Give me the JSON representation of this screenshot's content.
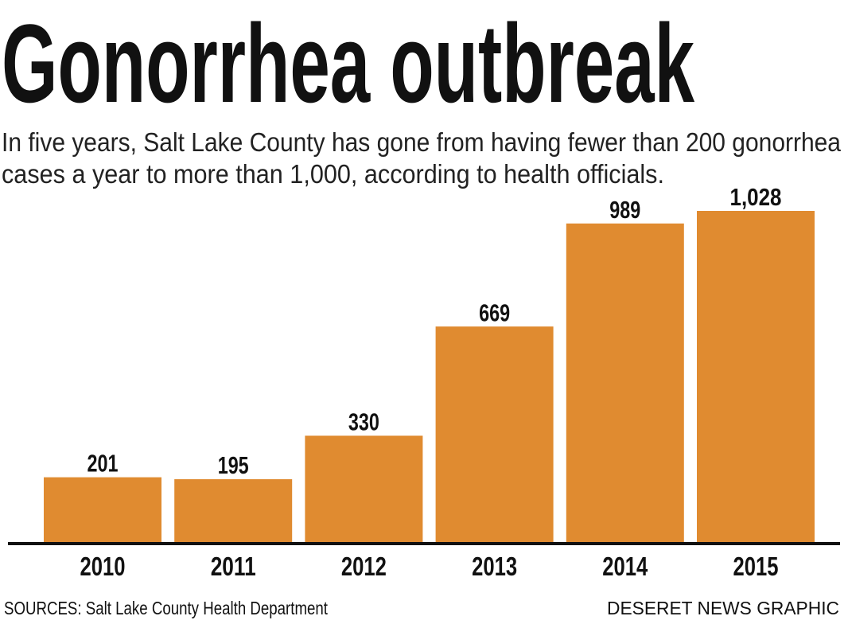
{
  "title": "Gonorrhea outbreak",
  "subtitle_lines": [
    "In five years, Salt Lake County has gone from having fewer than 200 gonorrhea",
    "cases a year to more than 1,000, according to health officials."
  ],
  "source": "SOURCES: Salt Lake County Health Department",
  "credit": "DESERET NEWS GRAPHIC",
  "colors": {
    "bar": "#e08b30",
    "axis": "#111111"
  },
  "chart_data": {
    "type": "bar",
    "categories": [
      "2010",
      "2011",
      "2012",
      "2013",
      "2014",
      "2015"
    ],
    "values": [
      201,
      195,
      330,
      669,
      989,
      1028
    ],
    "value_labels": [
      "201",
      "195",
      "330",
      "669",
      "989",
      "1,028"
    ],
    "xlabel": "",
    "ylabel": "",
    "ylim": [
      0,
      1028
    ],
    "grid": false,
    "legend": "none"
  }
}
